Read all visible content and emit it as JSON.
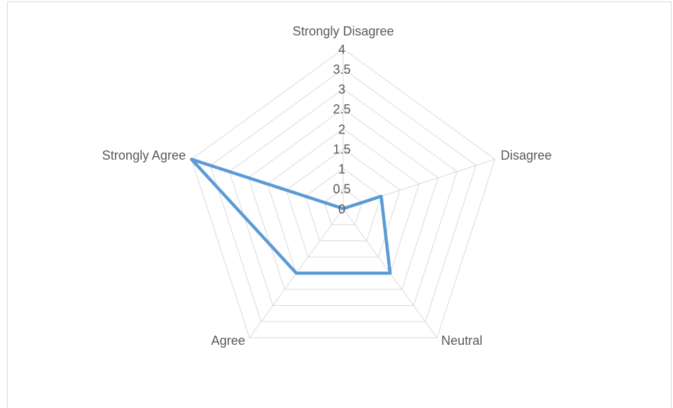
{
  "chart_data": {
    "type": "radar",
    "categories": [
      "Strongly Disagree",
      "Disagree",
      "Neutral",
      "Agree",
      "Strongly Agree"
    ],
    "values": [
      0,
      1,
      2,
      2,
      4
    ],
    "color": "#5b9bd5",
    "rlim": [
      0,
      4
    ],
    "rticks": [
      0,
      0.5,
      1,
      1.5,
      2,
      2.5,
      3,
      3.5,
      4
    ],
    "grid": true
  }
}
